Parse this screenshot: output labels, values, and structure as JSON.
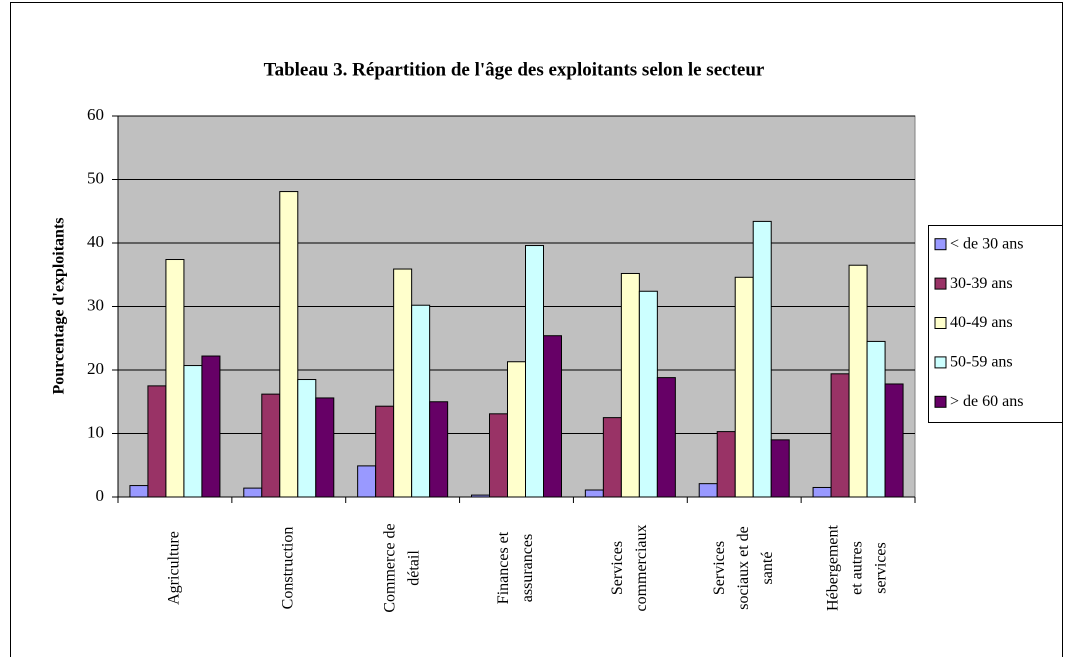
{
  "chart_data": {
    "type": "bar",
    "title": "Tableau 3. Répartition de l'âge des exploitants selon le secteur",
    "y_label": "Pourcentage d'exploitants",
    "categories": [
      [
        "Agriculture"
      ],
      [
        "Construction"
      ],
      [
        "Commerce de",
        "détail"
      ],
      [
        "Finances et",
        "assurances"
      ],
      [
        "Services",
        "commerciaux"
      ],
      [
        "Services",
        "sociaux et de",
        "santé"
      ],
      [
        "Hébergement",
        "et autres",
        "services"
      ]
    ],
    "series": [
      {
        "name": "< de 30 ans",
        "color": "#9999ff",
        "values": [
          1.8,
          1.4,
          4.9,
          0.3,
          1.1,
          2.1,
          1.5
        ]
      },
      {
        "name": "30-39 ans",
        "color": "#993366",
        "values": [
          17.5,
          16.2,
          14.3,
          13.1,
          12.5,
          10.3,
          19.4
        ]
      },
      {
        "name": "40-49 ans",
        "color": "#ffffcc",
        "values": [
          37.4,
          48.1,
          35.9,
          21.3,
          35.2,
          34.6,
          36.5
        ]
      },
      {
        "name": "50-59 ans",
        "color": "#ccffff",
        "values": [
          20.7,
          18.5,
          30.2,
          39.6,
          32.4,
          43.4,
          24.5
        ]
      },
      {
        "name": "> de 60 ans",
        "color": "#660066",
        "values": [
          22.2,
          15.6,
          15.0,
          25.4,
          18.8,
          9.0,
          17.8
        ]
      }
    ],
    "ylim": [
      0,
      60
    ],
    "yticks": [
      0,
      10,
      20,
      30,
      40,
      50,
      60
    ],
    "grid": true,
    "legend": "right"
  }
}
